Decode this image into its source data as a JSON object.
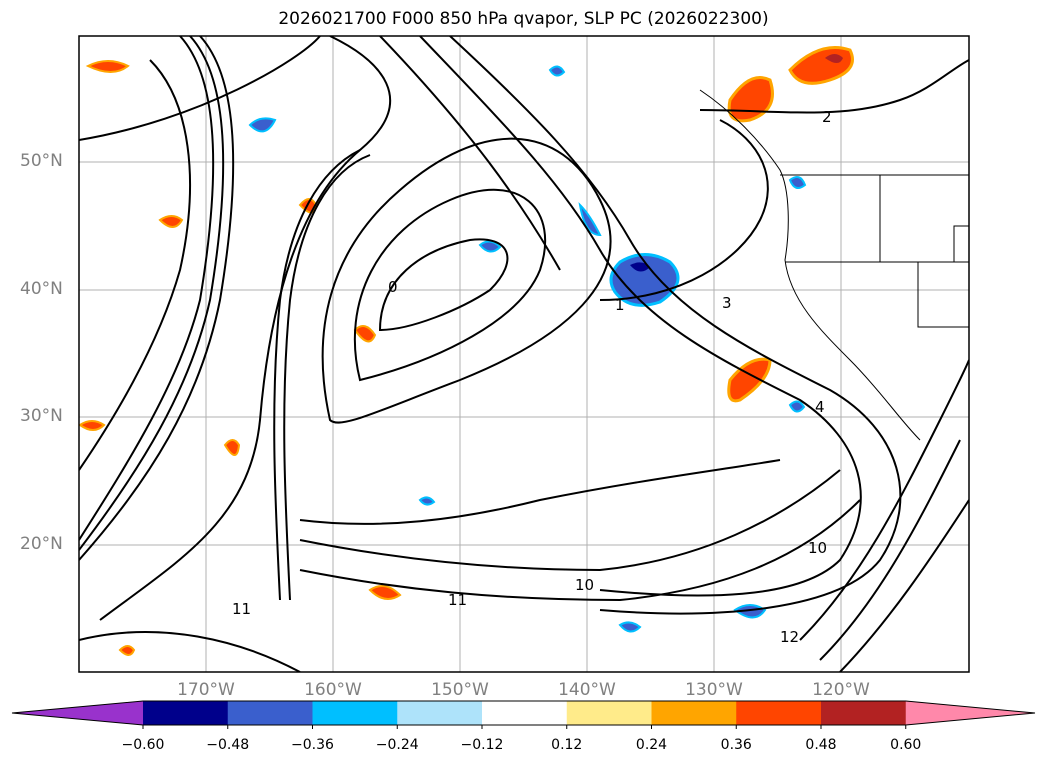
{
  "title": "2026021700 F000 850 hPa qvapor, SLP PC (2026022300)",
  "map": {
    "lat_ticks": [
      "50°N",
      "40°N",
      "30°N",
      "20°N"
    ],
    "lon_ticks": [
      "170°W",
      "160°W",
      "150°W",
      "140°W",
      "130°W",
      "120°W"
    ],
    "contour_labels": [
      "1",
      "0",
      "3",
      "2",
      "4",
      "10",
      "11",
      "12"
    ]
  },
  "colorbar": {
    "ticks": [
      "−0.60",
      "−0.48",
      "−0.36",
      "−0.24",
      "−0.12",
      "0.12",
      "0.24",
      "0.36",
      "0.48",
      "0.60"
    ],
    "colors": [
      "#9932cc",
      "#00008b",
      "#3a5fcd",
      "#00bfff",
      "#aee3fa",
      "#ffffff",
      "#ffeb8a",
      "#ffa500",
      "#ff4500",
      "#b22222",
      "#ff88aa"
    ]
  }
}
